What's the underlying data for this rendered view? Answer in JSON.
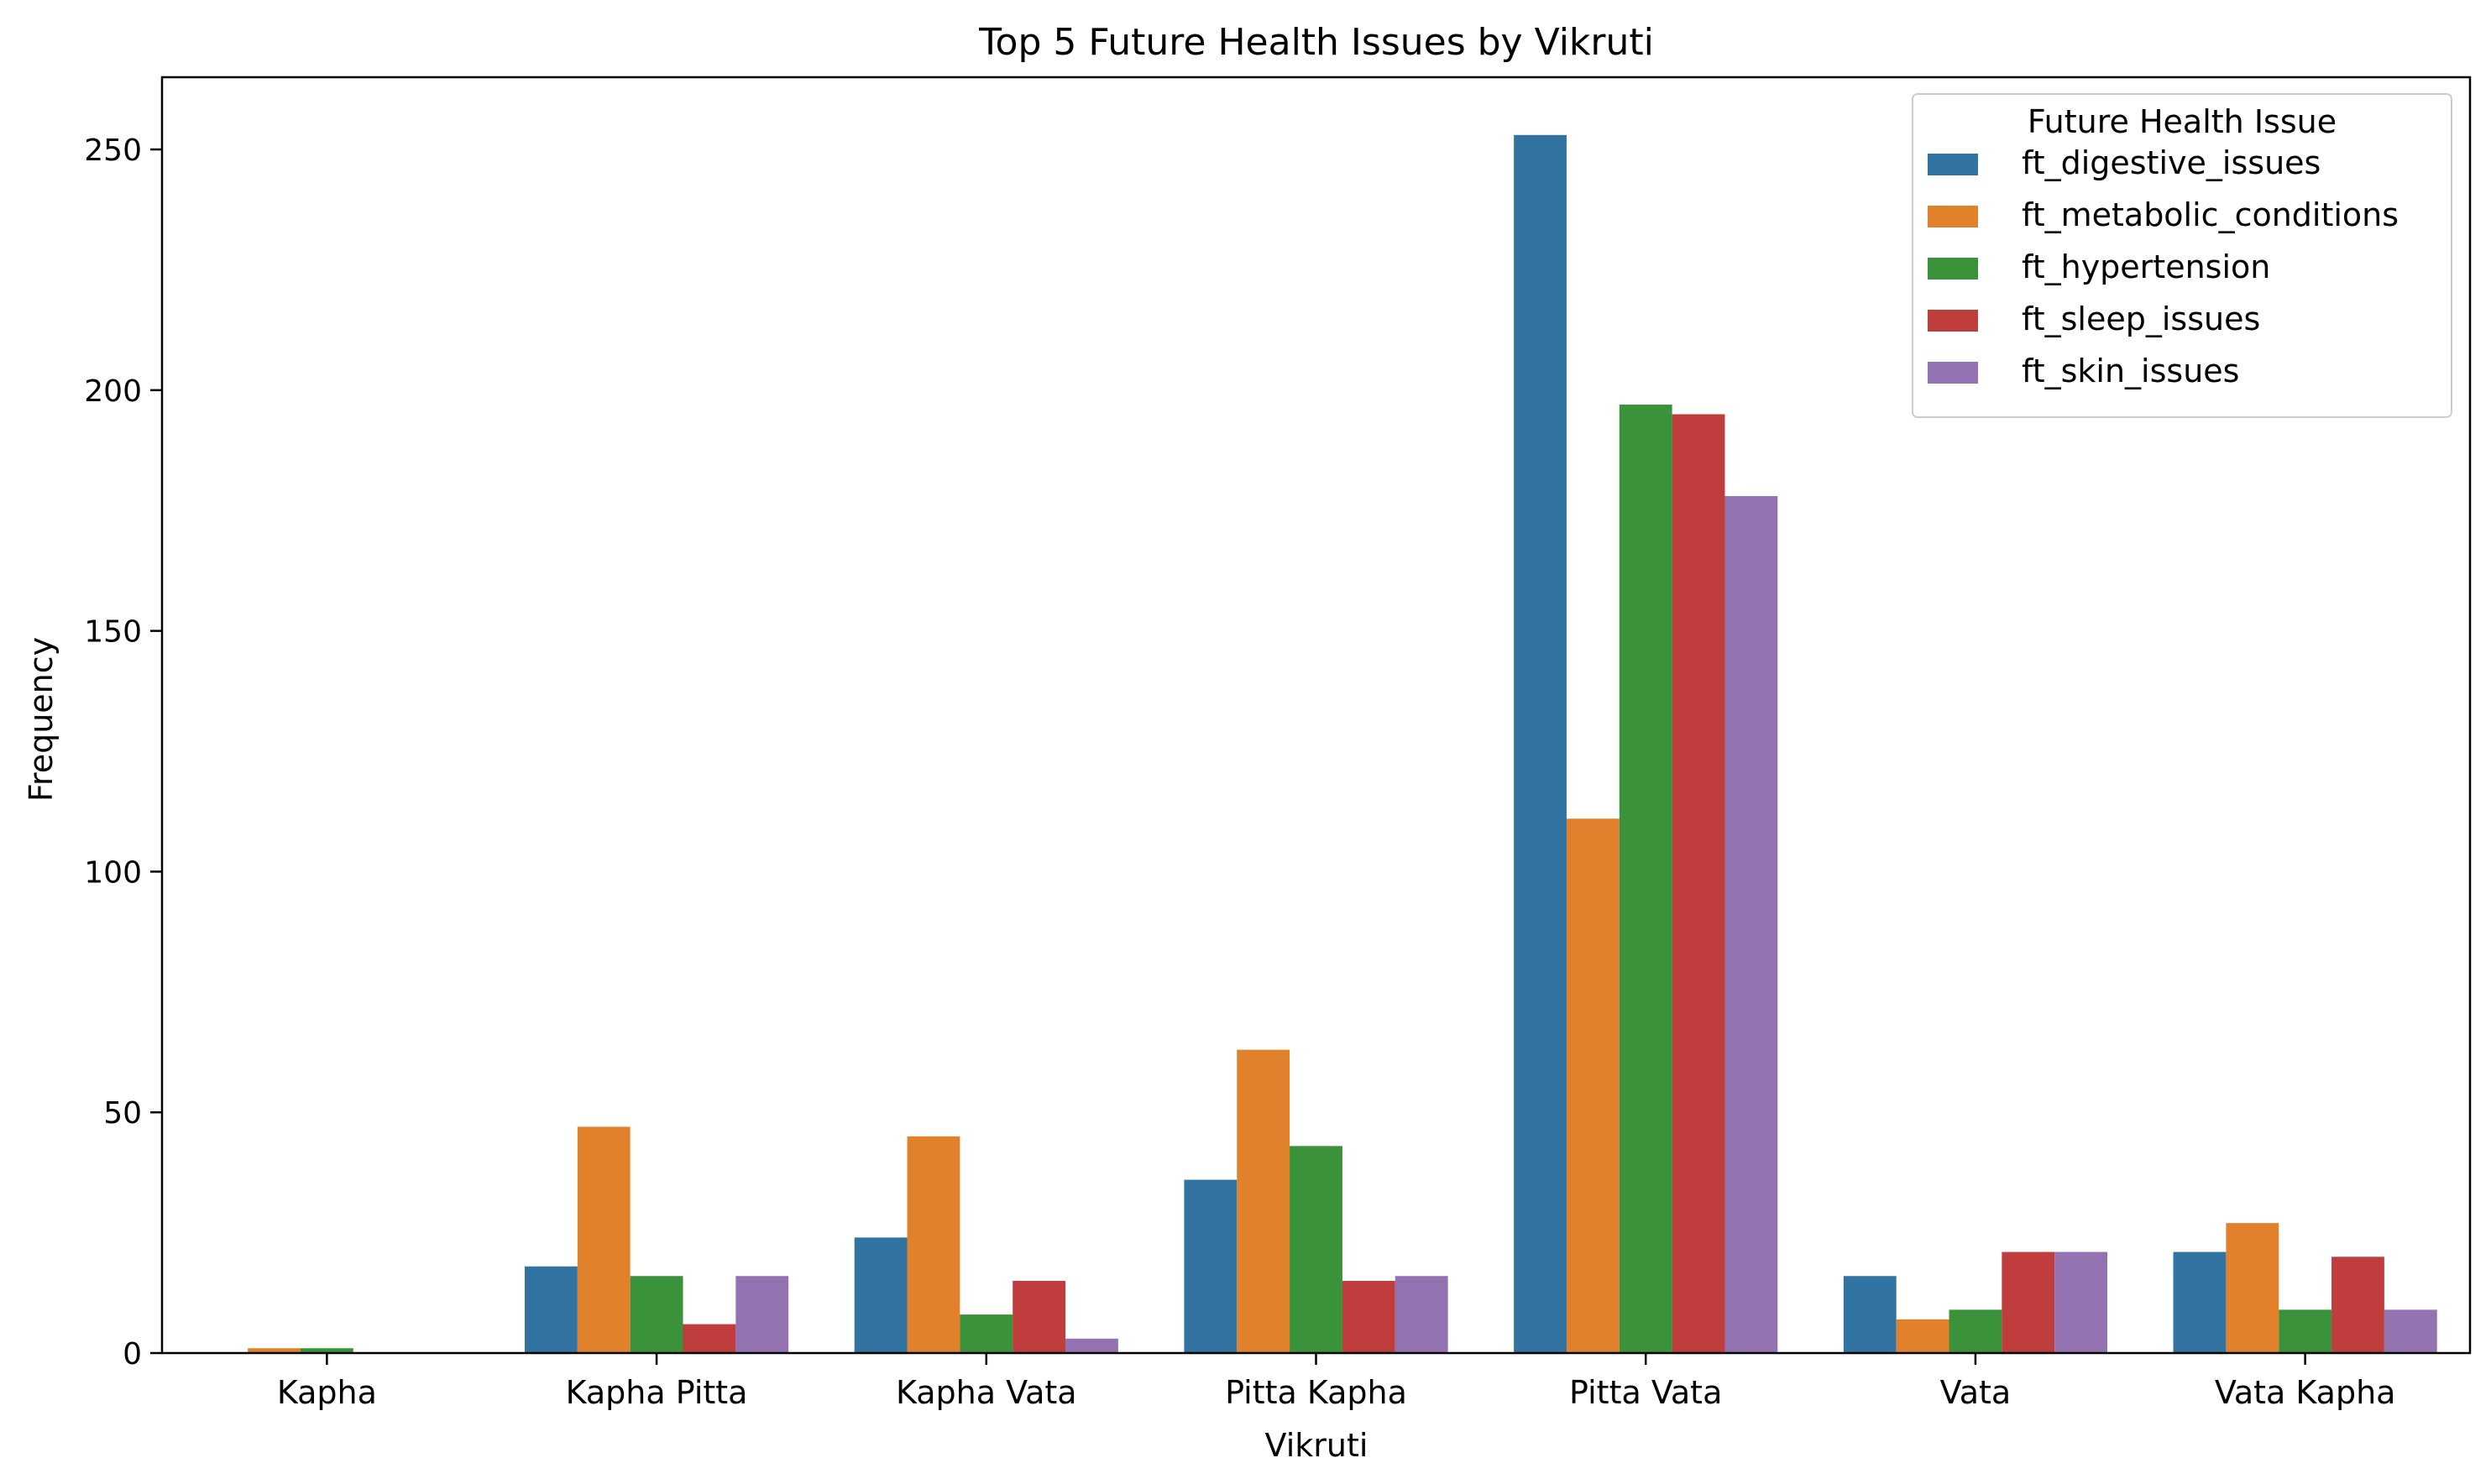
{
  "chart_data": {
    "type": "bar",
    "title": "Top 5 Future Health Issues by Vikruti",
    "xlabel": "Vikruti",
    "ylabel": "Frequency",
    "ylim": [
      0,
      265
    ],
    "yticks": [
      0,
      50,
      100,
      150,
      200,
      250
    ],
    "grid": false,
    "legend": {
      "title": "Future Health Issue",
      "placement": "top-right"
    },
    "categories": [
      "Kapha",
      "Kapha Pitta",
      "Kapha Vata",
      "Pitta Kapha",
      "Pitta Vata",
      "Vata",
      "Vata Kapha"
    ],
    "series": [
      {
        "name": "ft_digestive_issues",
        "color": "#3274a1",
        "values": [
          0,
          18,
          24,
          36,
          253,
          16,
          21
        ]
      },
      {
        "name": "ft_metabolic_conditions",
        "color": "#e1812c",
        "values": [
          1,
          47,
          45,
          63,
          111,
          7,
          27
        ]
      },
      {
        "name": "ft_hypertension",
        "color": "#3a923a",
        "values": [
          1,
          16,
          8,
          43,
          197,
          9,
          9
        ]
      },
      {
        "name": "ft_sleep_issues",
        "color": "#c03d3e",
        "values": [
          0,
          6,
          15,
          15,
          195,
          21,
          20
        ]
      },
      {
        "name": "ft_skin_issues",
        "color": "#9372b2",
        "values": [
          0,
          16,
          3,
          16,
          178,
          21,
          9
        ]
      }
    ]
  }
}
